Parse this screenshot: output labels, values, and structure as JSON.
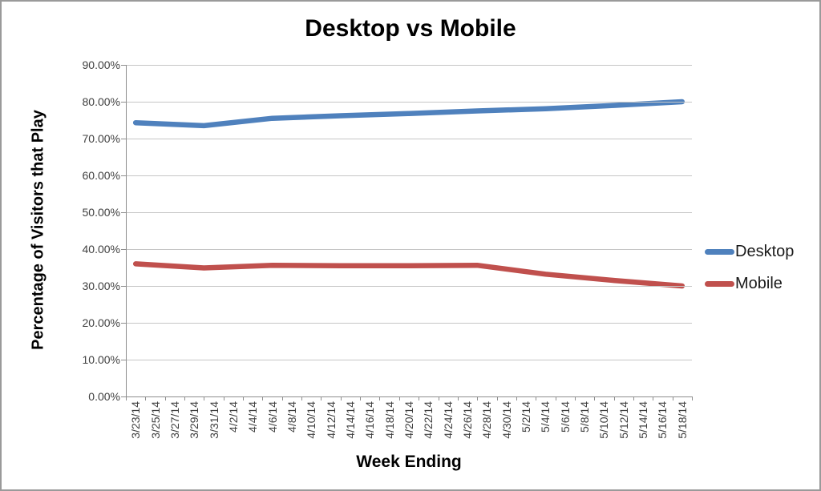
{
  "chart_data": {
    "type": "line",
    "title": "Desktop vs Mobile",
    "xlabel": "Week Ending",
    "ylabel": "Percentage of Visitors that Play",
    "ylim": [
      0,
      90
    ],
    "y_major_step": 10,
    "grid": "horizontal",
    "legend_position": "right-outside",
    "y_tick_labels": [
      "90.00%",
      "80.00%",
      "70.00%",
      "60.00%",
      "50.00%",
      "40.00%",
      "30.00%",
      "20.00%",
      "10.00%",
      "0.00%"
    ],
    "x_tick_labels": [
      "3/23/14",
      "3/25/14",
      "3/27/14",
      "3/29/14",
      "3/31/14",
      "4/2/14",
      "4/4/14",
      "4/6/14",
      "4/8/14",
      "4/10/14",
      "4/12/14",
      "4/14/14",
      "4/16/14",
      "4/18/14",
      "4/20/14",
      "4/22/14",
      "4/24/14",
      "4/26/14",
      "4/28/14",
      "4/30/14",
      "5/2/14",
      "5/4/14",
      "5/6/14",
      "5/8/14",
      "5/10/14",
      "5/12/14",
      "5/14/14",
      "5/16/14",
      "5/18/14"
    ],
    "point_dates": [
      "3/23/14",
      "3/30/14",
      "4/6/14",
      "4/13/14",
      "4/20/14",
      "4/27/14",
      "5/4/14",
      "5/11/14",
      "5/18/14"
    ],
    "series": [
      {
        "name": "Desktop",
        "color": "#4F81BD",
        "values": [
          74.3,
          73.5,
          75.5,
          76.2,
          76.8,
          77.5,
          78.1,
          79.0,
          80.0
        ]
      },
      {
        "name": "Mobile",
        "color": "#C0504D",
        "values": [
          36.0,
          34.9,
          35.6,
          35.5,
          35.5,
          35.6,
          33.2,
          31.5,
          30.0
        ]
      }
    ]
  },
  "style_colors": {
    "gridline": "#c6c6c6",
    "axis": "#8e8e8e",
    "tick_text": "#404040",
    "title_text": "#000000"
  },
  "legend": {
    "items": [
      {
        "label": "Desktop",
        "color": "#4F81BD"
      },
      {
        "label": "Mobile",
        "color": "#C0504D"
      }
    ]
  }
}
